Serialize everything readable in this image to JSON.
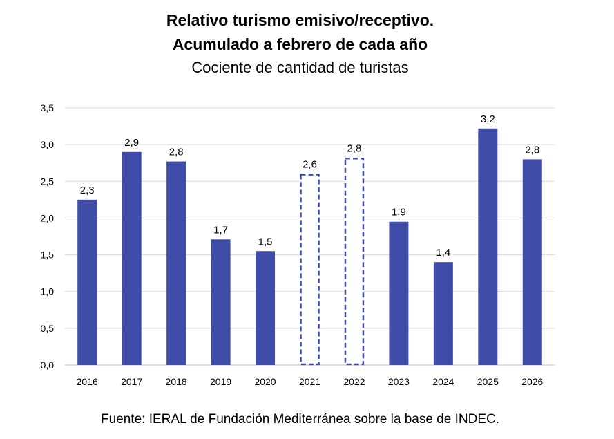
{
  "chart_data": {
    "type": "bar",
    "title_lines": [
      "Relativo turismo emisivo/receptivo.",
      "Acumulado a febrero de cada año"
    ],
    "subtitle": "Cociente de cantidad de turistas",
    "categories": [
      "2016",
      "2017",
      "2018",
      "2019",
      "2020",
      "2021",
      "2022",
      "2023",
      "2024",
      "2025",
      "2026"
    ],
    "values": [
      2.25,
      2.9,
      2.77,
      1.71,
      1.55,
      2.6,
      2.82,
      1.95,
      1.4,
      3.22,
      2.8
    ],
    "data_labels": [
      "2,3",
      "2,9",
      "2,8",
      "1,7",
      "1,5",
      "2,6",
      "2,8",
      "1,9",
      "1,4",
      "3,2",
      "2,8"
    ],
    "bar_styles": [
      "solid",
      "solid",
      "solid",
      "solid",
      "solid",
      "dashed-outline",
      "dashed-outline",
      "solid",
      "solid",
      "solid",
      "solid"
    ],
    "y_ticks": [
      0,
      0.5,
      1.0,
      1.5,
      2.0,
      2.5,
      3.0,
      3.5
    ],
    "y_tick_labels": [
      "0,0",
      "0,5",
      "1,0",
      "1,5",
      "2,0",
      "2,5",
      "3,0",
      "3,5"
    ],
    "ylim": [
      0,
      3.5
    ],
    "xlabel": "",
    "ylabel": "",
    "grid": true,
    "legend": "none",
    "colors": {
      "bar": "#3f4ca8",
      "grid": "#d9d9d9",
      "axis": "#bfbfbf",
      "text": "#000000"
    }
  },
  "source": "Fuente: IERAL de Fundación Mediterránea sobre la base de INDEC."
}
